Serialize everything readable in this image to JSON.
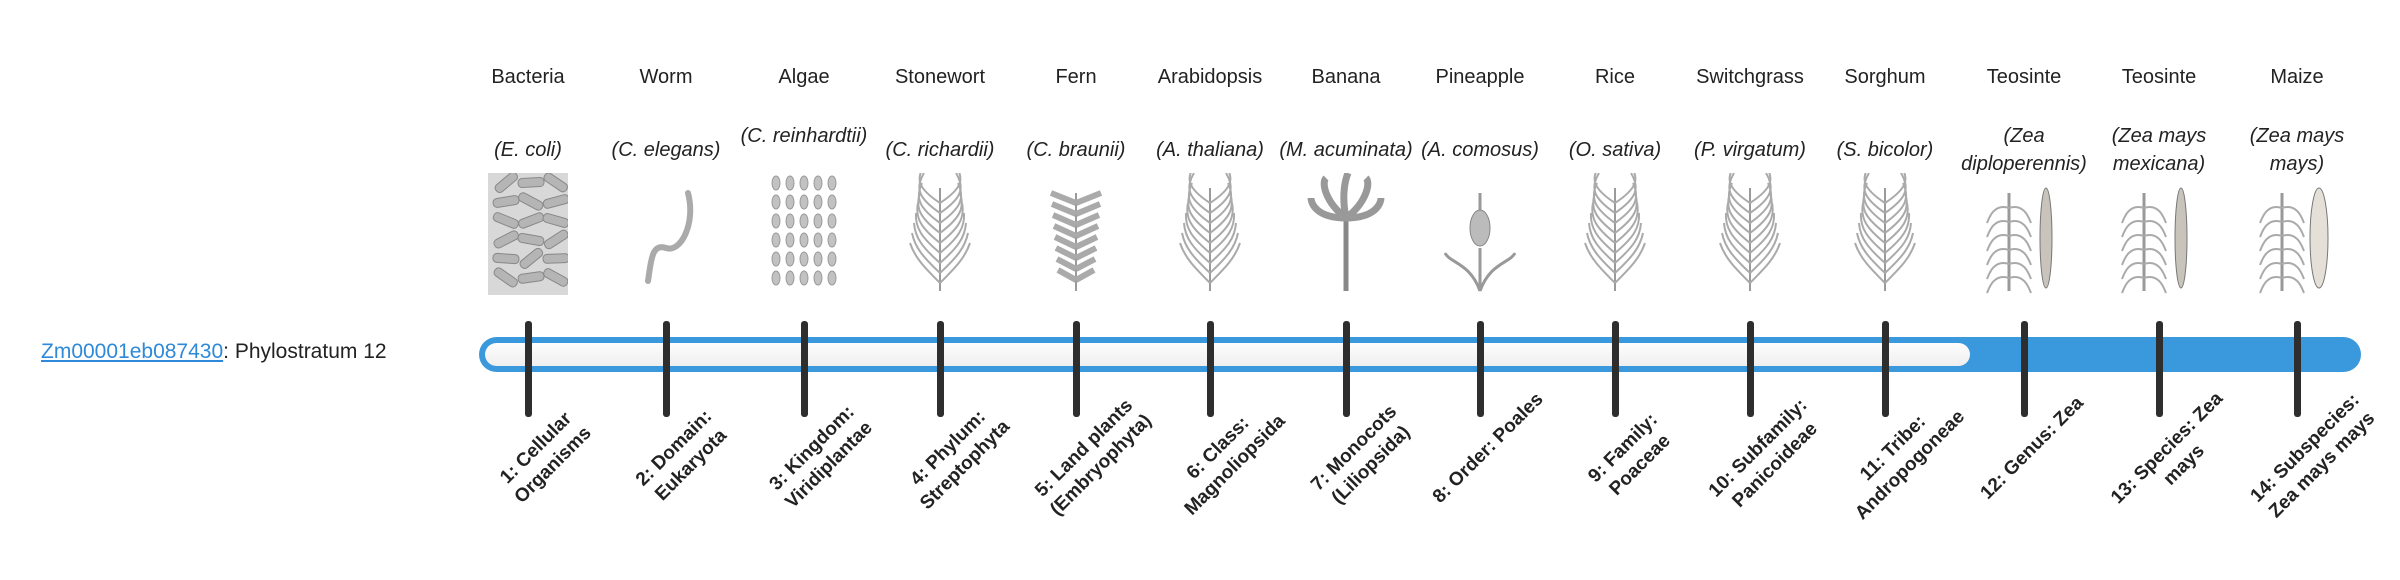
{
  "gene": {
    "id": "Zm00001eb087430",
    "suffix": ": Phylostratum 12"
  },
  "phylostratum": {
    "value": 12,
    "total": 14
  },
  "colors": {
    "bar": "#3a99dc",
    "link": "#2f89d9",
    "tick": "#2e2e2e"
  },
  "columns": [
    {
      "name": "Bacteria",
      "species": "(E. coli)",
      "rank": "1: Cellular Organisms",
      "icon": "bacteria-icon"
    },
    {
      "name": "Worm",
      "species": "(C. elegans)",
      "rank": "2: Domain: Eukaryota",
      "icon": "worm-icon"
    },
    {
      "name": "Algae",
      "species": "(C. reinhardtii)",
      "rank": "3: Kingdom: Viridiplantae",
      "icon": "algae-icon"
    },
    {
      "name": "Stonewort",
      "species": "(C. richardii)",
      "rank": "4: Phylum: Streptophyta",
      "icon": "stonewort-icon"
    },
    {
      "name": "Fern",
      "species": "(C. braunii)",
      "rank": "5: Land plants (Embryophyta)",
      "icon": "fern-icon"
    },
    {
      "name": "Arabidopsis",
      "species": "(A. thaliana)",
      "rank": "6: Class: Magnoliopsida",
      "icon": "arabidopsis-icon"
    },
    {
      "name": "Banana",
      "species": "(M. acuminata)",
      "rank": "7: Monocots (Liliopsida)",
      "icon": "banana-icon"
    },
    {
      "name": "Pineapple",
      "species": "(A. comosus)",
      "rank": "8: Order: Poales",
      "icon": "pineapple-icon"
    },
    {
      "name": "Rice",
      "species": "(O. sativa)",
      "rank": "9: Family: Poaceae",
      "icon": "rice-icon"
    },
    {
      "name": "Switchgrass",
      "species": "(P. virgatum)",
      "rank": "10: Subfamily: Panicoideae",
      "icon": "switchgrass-icon"
    },
    {
      "name": "Sorghum",
      "species": "(S. bicolor)",
      "rank": "11: Tribe: Andropogoneae",
      "icon": "sorghum-icon"
    },
    {
      "name": "Teosinte",
      "species": "(Zea diploperennis)",
      "rank": "12: Genus: Zea",
      "icon": "teosinte-icon"
    },
    {
      "name": "Teosinte",
      "species": "(Zea mays mexicana)",
      "rank": "13: Species: Zea mays",
      "icon": "teosinte-mexicana-icon"
    },
    {
      "name": "Maize",
      "species": "(Zea mays mays)",
      "rank": "14: Subspecies: Zea mays mays",
      "icon": "maize-icon"
    }
  ]
}
